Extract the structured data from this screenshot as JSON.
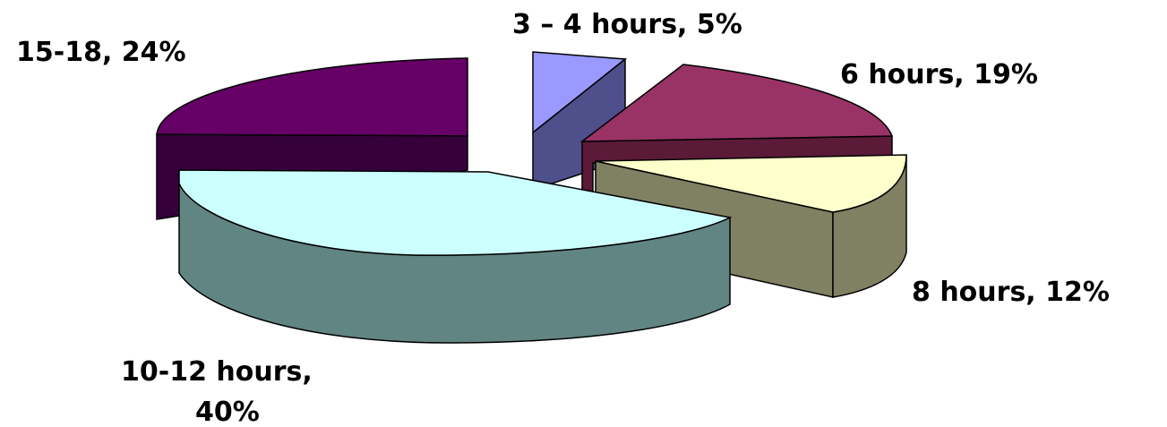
{
  "chart_data": {
    "type": "pie",
    "title": "",
    "slices": [
      {
        "label": "3 – 4 hours",
        "value": 5,
        "percent_label": "5%",
        "display": "3 – 4 hours, 5%",
        "top_color": "#9999FF",
        "side_color": "#4F4F8B"
      },
      {
        "label": "6 hours",
        "value": 19,
        "percent_label": "19%",
        "display": "6 hours, 19%",
        "top_color": "#993366",
        "side_color": "#5A1A38"
      },
      {
        "label": "8 hours",
        "value": 12,
        "percent_label": "12%",
        "display": "8 hours, 12%",
        "top_color": "#FFFFCC",
        "side_color": "#808063"
      },
      {
        "label": "10-12 hours",
        "value": 40,
        "percent_label": "40%",
        "display_lines": [
          "10-12 hours,",
          "40%"
        ],
        "top_color": "#CCFFFF",
        "side_color": "#618583"
      },
      {
        "label": "15-18",
        "value": 24,
        "percent_label": "24%",
        "display": "15-18, 24%",
        "top_color": "#660066",
        "side_color": "#36003B"
      }
    ],
    "exploded": true,
    "three_d": true,
    "legend": "none"
  }
}
